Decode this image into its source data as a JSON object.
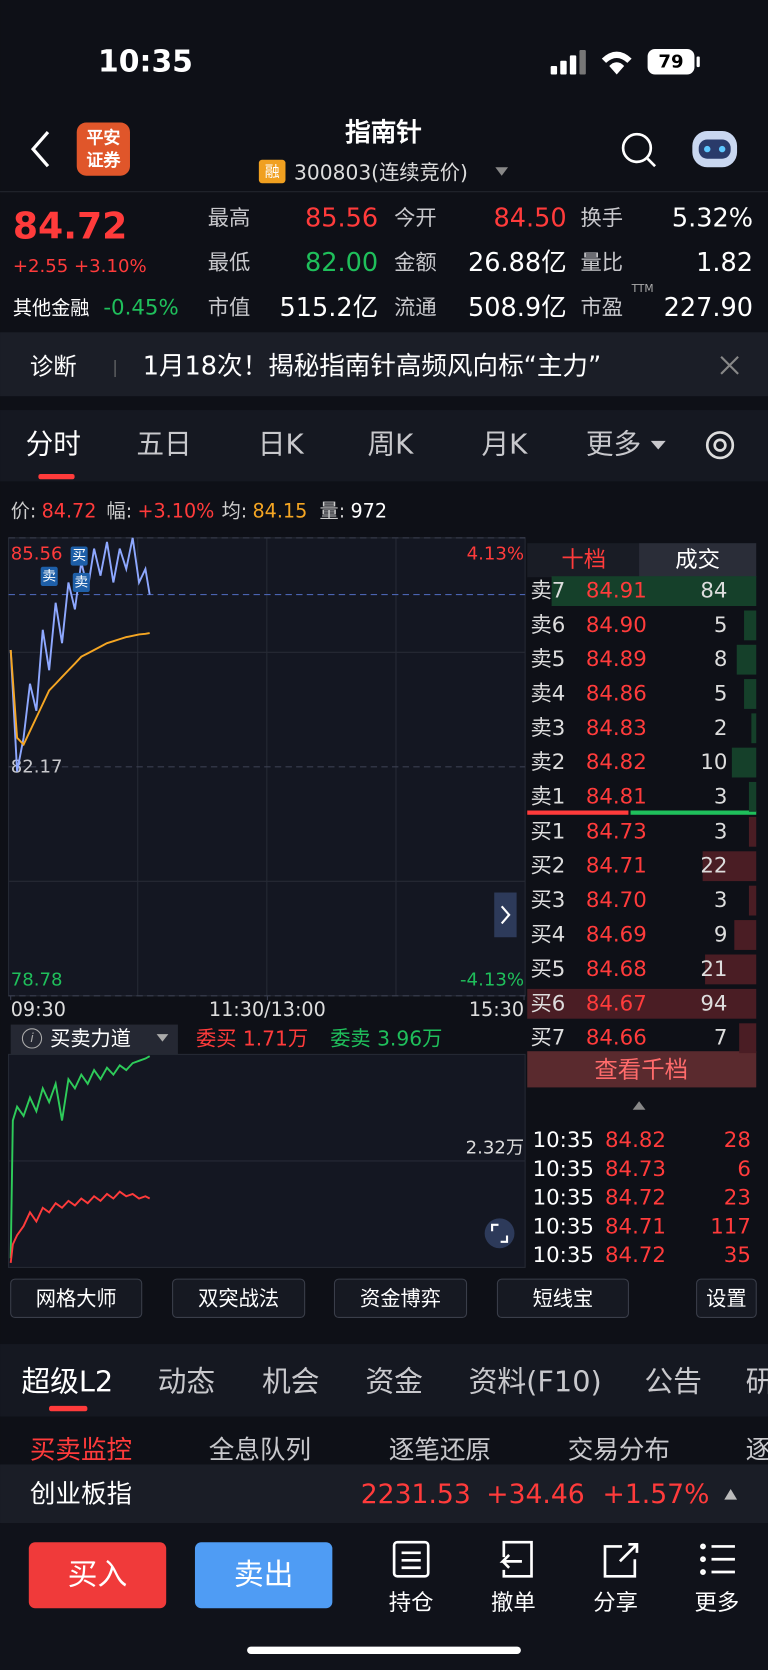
{
  "status": {
    "time": "10:35",
    "battery": "79"
  },
  "header": {
    "logo": [
      "平安",
      "证券"
    ],
    "title": "指南针",
    "badge": "融",
    "code": "300803(连续竞价)"
  },
  "quote": {
    "price": "84.72",
    "change": "+2.55 +3.10%",
    "sector": "其他金融",
    "sector_change": "-0.45%",
    "stats": [
      [
        {
          "label": "最高",
          "value": "85.56",
          "color": "#ff3b3b"
        },
        {
          "label": "今开",
          "value": "84.50",
          "color": "#ff3b3b"
        },
        {
          "label": "换手",
          "value": "5.32%",
          "color": "#ffffff"
        }
      ],
      [
        {
          "label": "最低",
          "value": "82.00",
          "color": "#1fbf5b"
        },
        {
          "label": "金额",
          "value": "26.88亿",
          "color": "#ffffff"
        },
        {
          "label": "量比",
          "value": "1.82",
          "color": "#ffffff"
        }
      ],
      [
        {
          "label": "市值",
          "value": "515.2亿",
          "color": "#ffffff"
        },
        {
          "label": "流通",
          "value": "508.9亿",
          "color": "#ffffff"
        },
        {
          "label": "市盈",
          "value": "227.90",
          "color": "#ffffff"
        }
      ]
    ],
    "pe_note": "TTM"
  },
  "banner": {
    "tag": "诊断",
    "text": "1月18次！揭秘指南针高频风向标“主力”"
  },
  "tabs": {
    "items": [
      "分时",
      "五日",
      "日K",
      "周K",
      "月K",
      "更多"
    ],
    "active": 0
  },
  "info": [
    {
      "label": "价:",
      "value": "84.72",
      "color": "#ff3b3b"
    },
    {
      "label": "幅:",
      "value": "+3.10%",
      "color": "#ff3b3b"
    },
    {
      "label": "均:",
      "value": "84.15",
      "color": "#f5a623"
    },
    {
      "label": "量:",
      "value": "972",
      "color": "#ffffff"
    }
  ],
  "price_chart": {
    "type": "line",
    "x": [
      0,
      3,
      6,
      9,
      12,
      15,
      18,
      21,
      24,
      27,
      30,
      33,
      36,
      39,
      42,
      45,
      48,
      51,
      54,
      57,
      60,
      63,
      65
    ],
    "series": [
      {
        "color": "#8ea8ff",
        "values": [
          83.9,
          82.1,
          82.6,
          83.4,
          83.0,
          84.2,
          83.6,
          84.6,
          84.0,
          84.9,
          84.5,
          85.2,
          84.8,
          85.4,
          85.0,
          85.5,
          84.9,
          85.4,
          85.1,
          85.56,
          84.9,
          85.1,
          84.72
        ]
      },
      {
        "color": "#f5a623",
        "values": [
          83.9,
          82.6,
          82.5,
          82.7,
          82.9,
          83.1,
          83.3,
          83.4,
          83.5,
          83.6,
          83.7,
          83.8,
          83.85,
          83.9,
          83.95,
          84.0,
          84.03,
          84.06,
          84.09,
          84.11,
          84.13,
          84.14,
          84.15
        ]
      }
    ],
    "xlim": [
      0,
      240
    ],
    "xticks": [
      {
        "value": 0,
        "label": "09:30"
      },
      {
        "value": 120,
        "label": "11:30/13:00"
      },
      {
        "value": 240,
        "label": "15:30"
      }
    ],
    "ylim": [
      78.78,
      85.56
    ],
    "yticks": [
      85.56,
      82.17,
      78.78
    ],
    "ytick_colors": [
      "#ff3b3b",
      "#c8c8cc",
      "#1fbf5b"
    ],
    "y2lim": [
      -4.13,
      4.13
    ],
    "y2ticks": [
      {
        "value": 4.13,
        "label": "4.13%"
      },
      {
        "value": -4.13,
        "label": "-4.13%"
      }
    ],
    "y2tick_colors": [
      "#ff3b3b",
      "#1fbf5b"
    ],
    "annotations": [
      {
        "label": "卖",
        "x": 18,
        "y": 84.99
      },
      {
        "label": "买",
        "x": 32,
        "y": 85.29
      },
      {
        "label": "卖",
        "x": 33,
        "y": 84.9
      }
    ]
  },
  "indicator": {
    "type": "line",
    "title": "买卖力道",
    "legend": [
      {
        "text": "委买 1.71万",
        "color": "#ff3b3b"
      },
      {
        "text": "委卖 3.96万",
        "color": "#1fbf5b"
      }
    ],
    "x": [
      0,
      1,
      3,
      6,
      9,
      12,
      15,
      18,
      21,
      24,
      27,
      30,
      33,
      36,
      39,
      42,
      45,
      48,
      51,
      54,
      57,
      60,
      63,
      65
    ],
    "series": [
      {
        "color": "#2ecc5a",
        "values": [
          0.2,
          3.2,
          3.5,
          3.3,
          3.7,
          3.4,
          3.9,
          3.6,
          4.0,
          3.2,
          4.1,
          3.9,
          4.2,
          4.0,
          4.3,
          4.1,
          4.35,
          4.2,
          4.4,
          4.3,
          4.45,
          4.5,
          4.55,
          4.6
        ]
      },
      {
        "color": "#ff3b3b",
        "values": [
          0.1,
          0.5,
          0.7,
          0.9,
          1.2,
          1.0,
          1.3,
          1.2,
          1.4,
          1.3,
          1.45,
          1.35,
          1.5,
          1.4,
          1.55,
          1.45,
          1.6,
          1.5,
          1.65,
          1.55,
          1.6,
          1.5,
          1.55,
          1.5
        ]
      }
    ],
    "xlim": [
      0,
      240
    ],
    "ylim": [
      0,
      4.64
    ],
    "yticks": [
      {
        "value": 2.32,
        "label": "2.32万"
      }
    ]
  },
  "order_book": {
    "tabs": [
      "十档",
      "成交"
    ],
    "asks": [
      {
        "label": "卖7",
        "price": "84.91",
        "volume": 84
      },
      {
        "label": "卖6",
        "price": "84.90",
        "volume": 5
      },
      {
        "label": "卖5",
        "price": "84.89",
        "volume": 8
      },
      {
        "label": "卖4",
        "price": "84.86",
        "volume": 5
      },
      {
        "label": "卖3",
        "price": "84.83",
        "volume": 2
      },
      {
        "label": "卖2",
        "price": "84.82",
        "volume": 10
      },
      {
        "label": "卖1",
        "price": "84.81",
        "volume": 3
      }
    ],
    "bids": [
      {
        "label": "买1",
        "price": "84.73",
        "volume": 3
      },
      {
        "label": "买2",
        "price": "84.71",
        "volume": 22
      },
      {
        "label": "买3",
        "price": "84.70",
        "volume": 3
      },
      {
        "label": "买4",
        "price": "84.69",
        "volume": 9
      },
      {
        "label": "买5",
        "price": "84.68",
        "volume": 21
      },
      {
        "label": "买6",
        "price": "84.67",
        "volume": 94
      },
      {
        "label": "买7",
        "price": "84.66",
        "volume": 7
      }
    ],
    "button": "查看千档"
  },
  "trades": [
    {
      "time": "10:35",
      "price": "84.82",
      "volume": "28"
    },
    {
      "time": "10:35",
      "price": "84.73",
      "volume": "6"
    },
    {
      "time": "10:35",
      "price": "84.72",
      "volume": "23"
    },
    {
      "time": "10:35",
      "price": "84.71",
      "volume": "117"
    },
    {
      "time": "10:35",
      "price": "84.72",
      "volume": "35"
    }
  ],
  "tools": [
    "网格大师",
    "双突战法",
    "资金博弈",
    "短线宝",
    "设置"
  ],
  "bottom_tabs": [
    "超级L2",
    "动态",
    "机会",
    "资金",
    "资料(F10)",
    "公告",
    "研"
  ],
  "sub_tabs": [
    "买卖监控",
    "全息队列",
    "逐笔还原",
    "交易分布",
    "逐"
  ],
  "index": {
    "name": "创业板指",
    "value": "2231.53",
    "change": "+34.46",
    "percent": "+1.57%"
  },
  "actions": {
    "buy": "买入",
    "sell": "卖出",
    "items": [
      "持仓",
      "撤单",
      "分享",
      "更多"
    ]
  }
}
